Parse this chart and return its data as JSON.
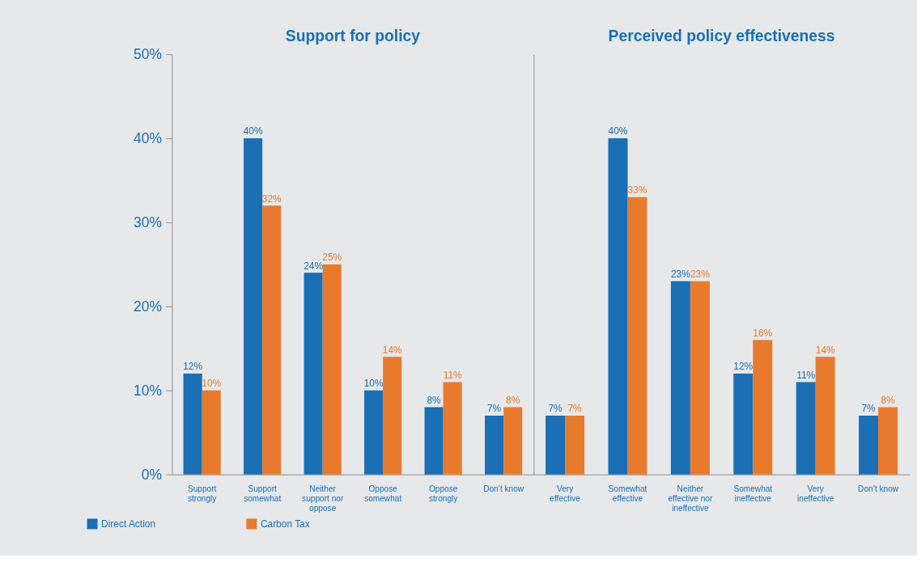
{
  "chart_data": [
    {
      "type": "bar",
      "title": "Support for policy",
      "categories": [
        "Support strongly",
        "Support somewhat",
        "Neither support nor oppose",
        "Oppose somewhat",
        "Oppose strongly",
        "Don’t know"
      ],
      "series": [
        {
          "name": "Direct Action",
          "color": "#1a6fb5",
          "values": [
            12,
            40,
            24,
            10,
            8,
            7
          ],
          "value_labels": [
            "12%",
            "40%",
            "24%",
            "10%",
            "8%",
            "7%"
          ]
        },
        {
          "name": "Carbon Tax",
          "color": "#e87a2e",
          "values": [
            10,
            32,
            25,
            14,
            11,
            8
          ],
          "value_labels": [
            "10%",
            "32%",
            "25%",
            "14%",
            "11%",
            "8%"
          ]
        }
      ],
      "ylim": [
        0,
        50
      ],
      "yticks": [
        {
          "value": 0,
          "label": "0%"
        },
        {
          "value": 10,
          "label": "10%"
        },
        {
          "value": 20,
          "label": "20%"
        },
        {
          "value": 30,
          "label": "30%"
        },
        {
          "value": 40,
          "label": "40%"
        },
        {
          "value": 50,
          "label": "50%"
        }
      ],
      "grid": false,
      "legend": "bottom left"
    },
    {
      "type": "bar",
      "title": "Perceived policy effectiveness",
      "categories": [
        "Very effective",
        "Somewhat effective",
        "Neither effective nor ineffective",
        "Somewhat ineffective",
        "Very ineffective",
        "Don’t know"
      ],
      "series": [
        {
          "color": "#1a6fb5",
          "values": [
            7,
            40,
            23,
            12,
            11,
            7
          ],
          "value_labels": [
            "7%",
            "40%",
            "23%",
            "12%",
            "11%",
            "7%"
          ]
        },
        {
          "color": "#e87a2e",
          "values": [
            7,
            33,
            23,
            16,
            14,
            8
          ],
          "value_labels": [
            "7%",
            "33%",
            "23%",
            "16%",
            "14%",
            "8%"
          ]
        }
      ],
      "ylim": [
        0,
        50
      ],
      "grid": false,
      "tick_labels": "x",
      "legend": false
    }
  ]
}
